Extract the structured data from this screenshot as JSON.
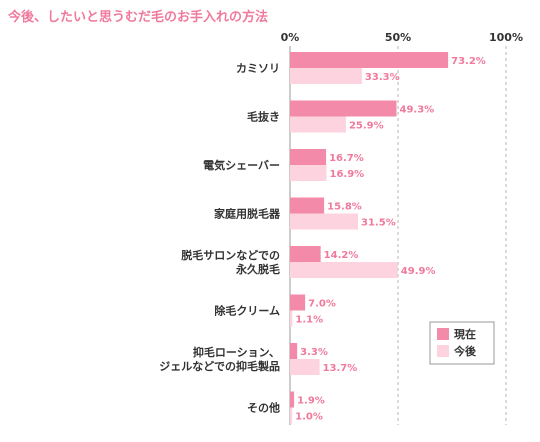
{
  "chart_data": {
    "type": "bar",
    "orientation": "horizontal",
    "title": "今後、したいと思うむだ毛のお手入れの方法",
    "categories": [
      [
        "カミソリ"
      ],
      [
        "毛抜き"
      ],
      [
        "電気シェーバー"
      ],
      [
        "家庭用脱毛器"
      ],
      [
        "脱毛サロンなどでの",
        "永久脱毛"
      ],
      [
        "除毛クリーム"
      ],
      [
        "抑毛ローション、",
        "ジェルなどでの抑毛製品"
      ],
      [
        "その他"
      ]
    ],
    "series": [
      {
        "name": "現在",
        "color": "#f48aa9",
        "values": [
          73.2,
          49.3,
          16.7,
          15.8,
          14.2,
          7.0,
          3.3,
          1.9
        ],
        "labels": [
          "73.2%",
          "49.3%",
          "16.7%",
          "15.8%",
          "14.2%",
          "7.0%",
          "3.3%",
          "1.9%"
        ]
      },
      {
        "name": "今後",
        "color": "#fcd3df",
        "values": [
          33.3,
          25.9,
          16.9,
          31.5,
          49.9,
          1.1,
          13.7,
          1.0
        ],
        "labels": [
          "33.3%",
          "25.9%",
          "16.9%",
          "31.5%",
          "49.9%",
          "1.1%",
          "13.7%",
          "1.0%"
        ]
      }
    ],
    "x_ticks": [
      0,
      50,
      100
    ],
    "x_tick_labels": [
      "0%",
      "50%",
      "100%"
    ],
    "xlim": [
      0,
      100
    ],
    "value_label_color": "#f07a9c",
    "grid": true,
    "grid_style": "dashed-vertical",
    "legend_position": "bottom-right"
  }
}
